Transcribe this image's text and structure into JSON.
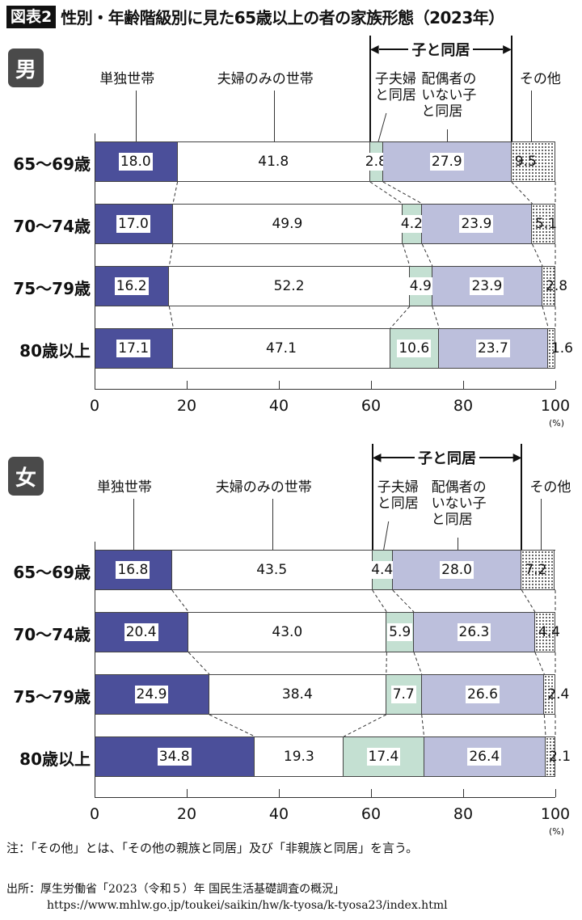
{
  "header": {
    "figure_badge": "図表2",
    "title": "性別・年齢階級別に見た65歳以上の者の家族形態（2023年）"
  },
  "legend": {
    "alone": "単独世帯",
    "couple_only": "夫婦のみの世帯",
    "with_children_bracket": "子と同居",
    "with_married_child_l1": "子夫婦",
    "with_married_child_l2": "と同居",
    "with_unmarried_child_l1": "配偶者の",
    "with_unmarried_child_l2": "いない子",
    "with_unmarried_child_l3": "と同居",
    "other": "その他"
  },
  "panels": [
    {
      "gender": "男",
      "rows": [
        {
          "label": "65～69歳",
          "values": [
            "18.0",
            "41.8",
            "2.8",
            "27.9",
            "9.5"
          ]
        },
        {
          "label": "70～74歳",
          "values": [
            "17.0",
            "49.9",
            "4.2",
            "23.9",
            "5.1"
          ]
        },
        {
          "label": "75～79歳",
          "values": [
            "16.2",
            "52.2",
            "4.9",
            "23.9",
            "2.8"
          ]
        },
        {
          "label": "80歳以上",
          "values": [
            "17.1",
            "47.1",
            "10.6",
            "23.7",
            "1.6"
          ]
        }
      ]
    },
    {
      "gender": "女",
      "rows": [
        {
          "label": "65～69歳",
          "values": [
            "16.8",
            "43.5",
            "4.4",
            "28.0",
            "7.2"
          ]
        },
        {
          "label": "70～74歳",
          "values": [
            "20.4",
            "43.0",
            "5.9",
            "26.3",
            "4.4"
          ]
        },
        {
          "label": "75～79歳",
          "values": [
            "24.9",
            "38.4",
            "7.7",
            "26.6",
            "2.4"
          ]
        },
        {
          "label": "80歳以上",
          "values": [
            "34.8",
            "19.3",
            "17.4",
            "26.4",
            "2.1"
          ]
        }
      ]
    }
  ],
  "axis": {
    "ticks": [
      "0",
      "20",
      "40",
      "60",
      "80",
      "100"
    ],
    "unit": "(%)"
  },
  "footer": {
    "note": "注：「その他」とは、「その他の親族と同居」及び「非親族と同居」を言う。",
    "source_line1": "出所：厚生労働省「2023（令和５）年 国民生活基礎調査の概況」",
    "source_line2": "https://www.mhlw.go.jp/toukei/saikin/hw/k-tyosa/k-tyosa23/index.html"
  },
  "colors": {
    "alone": "#4b4f9a",
    "couple_only": "#ffffff",
    "with_married_child": "#c4e0d2",
    "with_unmarried_child": "#bcbfdc",
    "other": "dotted pattern"
  },
  "chart_data": [
    {
      "type": "bar",
      "orientation": "horizontal-stacked-100",
      "title": "男",
      "categories": [
        "65～69歳",
        "70～74歳",
        "75～79歳",
        "80歳以上"
      ],
      "series": [
        {
          "name": "単独世帯",
          "values": [
            18.0,
            17.0,
            16.2,
            17.1
          ]
        },
        {
          "name": "夫婦のみの世帯",
          "values": [
            41.8,
            49.9,
            52.2,
            47.1
          ]
        },
        {
          "name": "子夫婦と同居",
          "values": [
            2.8,
            4.2,
            4.9,
            10.6
          ]
        },
        {
          "name": "配偶者のいない子と同居",
          "values": [
            27.9,
            23.9,
            23.9,
            23.7
          ]
        },
        {
          "name": "その他",
          "values": [
            9.5,
            5.1,
            2.8,
            1.6
          ]
        }
      ],
      "xlabel": "(%)",
      "xlim": [
        0,
        100
      ],
      "xticks": [
        0,
        20,
        40,
        60,
        80,
        100
      ],
      "annotations": [
        "子と同居 brackets 子夫婦と同居 + 配偶者のいない子と同居"
      ]
    },
    {
      "type": "bar",
      "orientation": "horizontal-stacked-100",
      "title": "女",
      "categories": [
        "65～69歳",
        "70～74歳",
        "75～79歳",
        "80歳以上"
      ],
      "series": [
        {
          "name": "単独世帯",
          "values": [
            16.8,
            20.4,
            24.9,
            34.8
          ]
        },
        {
          "name": "夫婦のみの世帯",
          "values": [
            43.5,
            43.0,
            38.4,
            19.3
          ]
        },
        {
          "name": "子夫婦と同居",
          "values": [
            4.4,
            5.9,
            7.7,
            17.4
          ]
        },
        {
          "name": "配偶者のいない子と同居",
          "values": [
            28.0,
            26.3,
            26.6,
            26.4
          ]
        },
        {
          "name": "その他",
          "values": [
            7.2,
            4.4,
            2.4,
            2.1
          ]
        }
      ],
      "xlabel": "(%)",
      "xlim": [
        0,
        100
      ],
      "xticks": [
        0,
        20,
        40,
        60,
        80,
        100
      ],
      "annotations": [
        "子と同居 brackets 子夫婦と同居 + 配偶者のいない子と同居"
      ]
    }
  ]
}
